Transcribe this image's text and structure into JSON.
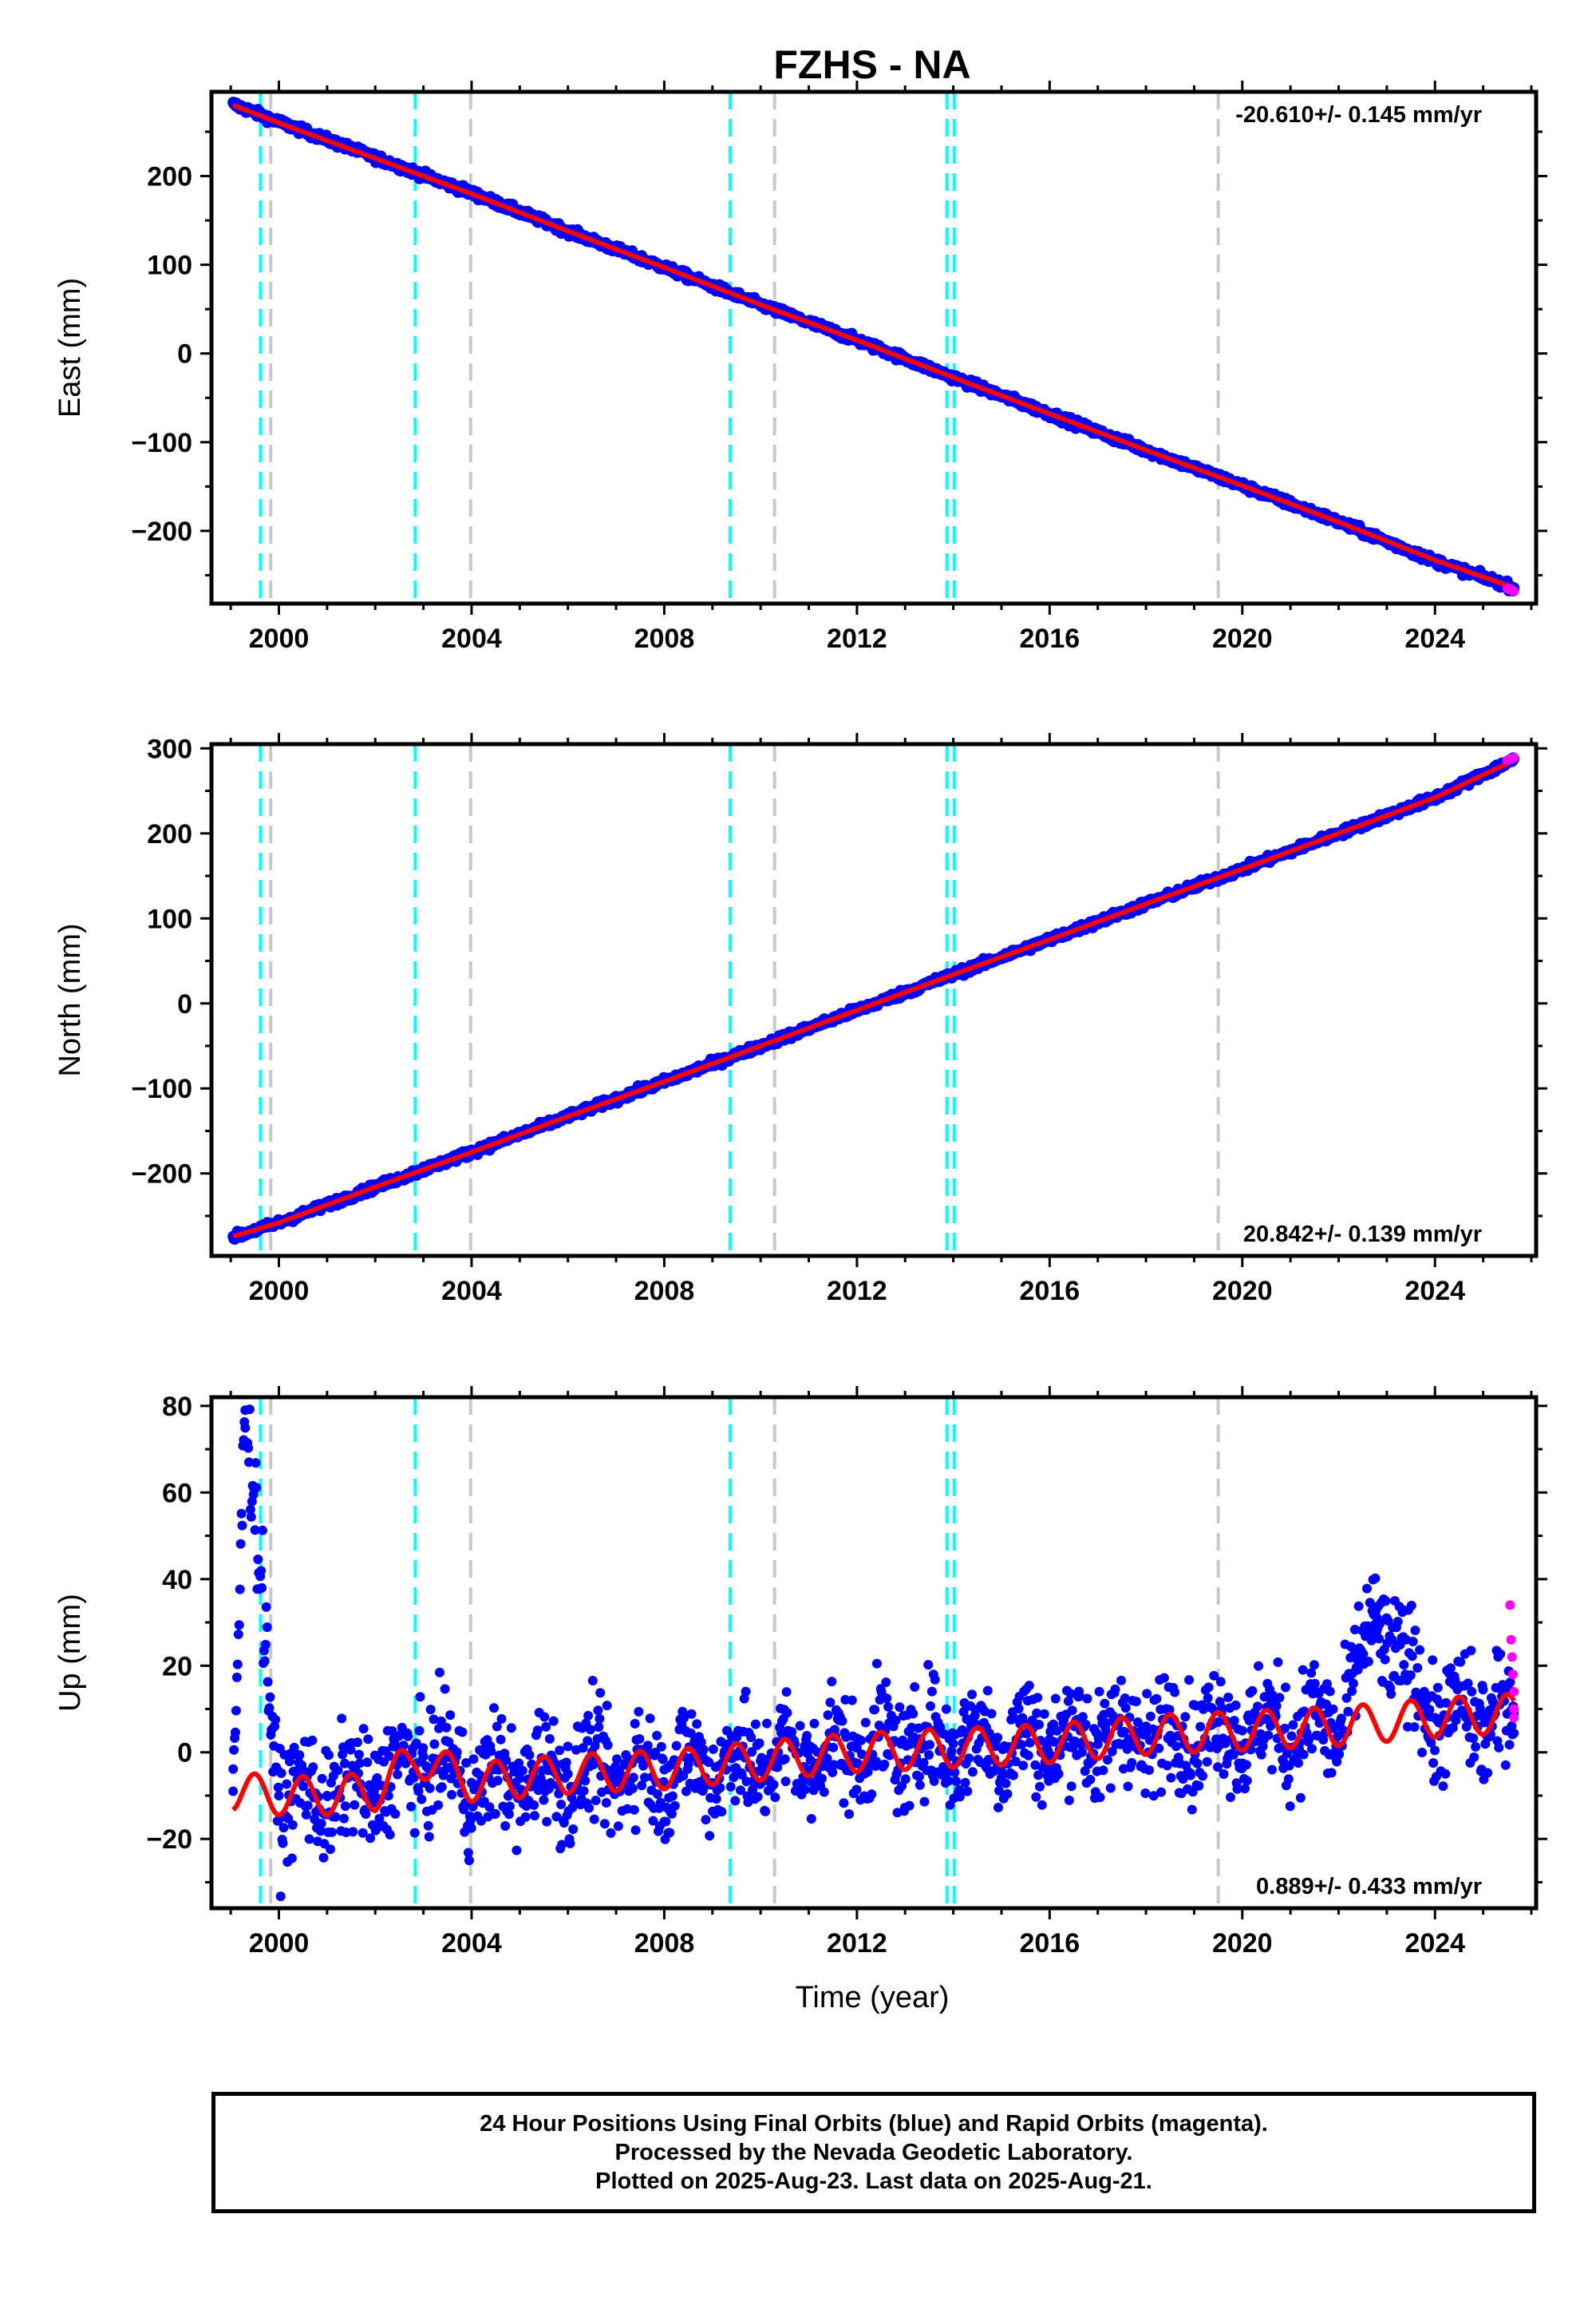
{
  "chart_data": [
    {
      "type": "scatter",
      "panel": "east",
      "title": "FZHS - NA",
      "ylabel": "East (mm)",
      "xlabel": "",
      "xlim": [
        1998.6,
        2026.1
      ],
      "ylim": [
        -282,
        295
      ],
      "xticks": [
        2000,
        2004,
        2008,
        2012,
        2016,
        2020,
        2024
      ],
      "yticks": [
        -200,
        -100,
        0,
        100,
        200
      ],
      "rate_label": "-20.610+/- 0.145 mm/yr",
      "rate_position": "top-right",
      "t_start": 1999.05,
      "t_end": 2025.64,
      "series": [
        {
          "color": "#0000ff",
          "marker": "dot",
          "x": [
            1999.05,
            2000.0,
            2002.0,
            2004.0,
            2006.0,
            2008.0,
            2010.0,
            2012.0,
            2014.0,
            2016.0,
            2018.0,
            2020.0,
            2022.0,
            2024.0,
            2025.64
          ],
          "y": [
            281,
            261,
            221,
            181,
            138,
            97,
            55,
            15,
            -27,
            -68,
            -109,
            -149,
            -190,
            -234,
            -264
          ]
        },
        {
          "color": "#ff0000",
          "type": "line",
          "x": [
            1999.05,
            2000.0,
            2002.0,
            2004.0,
            2006.0,
            2008.0,
            2010.0,
            2012.0,
            2014.0,
            2016.0,
            2018.0,
            2020.0,
            2022.0,
            2024.0,
            2025.64
          ],
          "y": [
            280,
            260,
            220,
            180,
            138,
            97,
            55,
            15,
            -27,
            -68,
            -109,
            -149,
            -190,
            -233,
            -264
          ]
        },
        {
          "color": "#ff00ff",
          "marker": "dot",
          "x": [
            2025.5,
            2025.55,
            2025.6,
            2025.64
          ],
          "y": [
            -265,
            -266,
            -267,
            -268
          ]
        }
      ],
      "breaks_equipment": [
        1999.62,
        2002.83,
        2009.37,
        2013.87,
        2014.02
      ],
      "breaks_other": [
        1999.83,
        2003.98,
        2010.29,
        2019.5
      ]
    },
    {
      "type": "scatter",
      "panel": "north",
      "title": "",
      "ylabel": "North (mm)",
      "xlabel": "",
      "xlim": [
        1998.6,
        2026.1
      ],
      "ylim": [
        -297,
        305
      ],
      "xticks": [
        2000,
        2004,
        2008,
        2012,
        2016,
        2020,
        2024
      ],
      "yticks": [
        -200,
        -100,
        0,
        100,
        200,
        300
      ],
      "rate_label": "20.842+/- 0.139 mm/yr",
      "rate_position": "bottom-right",
      "t_start": 1999.05,
      "t_end": 2025.64,
      "series": [
        {
          "color": "#0000ff",
          "marker": "dot",
          "x": [
            1999.05,
            2000.0,
            2002.0,
            2004.0,
            2006.0,
            2008.0,
            2010.0,
            2012.0,
            2014.0,
            2016.0,
            2018.0,
            2020.0,
            2022.0,
            2024.0,
            2025.64
          ],
          "y": [
            -275,
            -258,
            -216,
            -175,
            -133,
            -92,
            -50,
            -8,
            34,
            75,
            117,
            158,
            200,
            242,
            287
          ]
        },
        {
          "color": "#ff0000",
          "type": "line",
          "x": [
            1999.05,
            2000.0,
            2002.0,
            2004.0,
            2006.0,
            2008.0,
            2010.0,
            2012.0,
            2014.0,
            2016.0,
            2018.0,
            2020.0,
            2022.0,
            2024.0,
            2025.64
          ],
          "y": [
            -274,
            -258,
            -216,
            -175,
            -133,
            -92,
            -50,
            -8,
            34,
            75,
            117,
            158,
            200,
            242,
            286
          ]
        },
        {
          "color": "#ff00ff",
          "marker": "dot",
          "x": [
            2025.5,
            2025.55,
            2025.6,
            2025.64
          ],
          "y": [
            286,
            287,
            288,
            289
          ]
        }
      ],
      "breaks_equipment": [
        1999.62,
        2002.83,
        2009.37,
        2013.87,
        2014.02
      ],
      "breaks_other": [
        1999.83,
        2003.98,
        2010.29,
        2019.5
      ]
    },
    {
      "type": "scatter",
      "panel": "up",
      "title": "",
      "ylabel": "Up (mm)",
      "xlabel": "Time (year)",
      "xlim": [
        1998.6,
        2026.1
      ],
      "ylim": [
        -36,
        82
      ],
      "xticks": [
        2000,
        2004,
        2008,
        2012,
        2016,
        2020,
        2024
      ],
      "yticks": [
        -20,
        0,
        20,
        40,
        60,
        80
      ],
      "rate_label": "0.889+/- 0.433 mm/yr",
      "rate_position": "bottom-right",
      "t_start": 1999.05,
      "t_end": 2025.64,
      "seasonal_amplitude_mm": 4.5,
      "series": [
        {
          "color": "#0000ff",
          "marker": "dot",
          "x": [
            1999.05,
            1999.3,
            2000.0,
            2001.0,
            2002.0,
            2003.0,
            2004.0,
            2005.0,
            2006.0,
            2008.0,
            2010.0,
            2012.0,
            2014.0,
            2016.0,
            2018.0,
            2020.0,
            2022.0,
            2022.8,
            2024.0,
            2025.64
          ],
          "y": [
            -9,
            79,
            -10,
            -10,
            -8,
            -1,
            -7,
            -6,
            -5,
            -4,
            -2,
            1,
            2,
            3,
            4,
            5,
            6,
            31,
            8,
            9
          ]
        },
        {
          "color": "#ff0000",
          "type": "line",
          "x": [
            1999.05,
            2000.0,
            2001.0,
            2002.0,
            2002.85,
            2004.0,
            2006.0,
            2008.0,
            2010.0,
            2012.0,
            2014.0,
            2016.0,
            2018.0,
            2020.0,
            2022.0,
            2024.0,
            2025.64
          ],
          "y": [
            -9,
            -10,
            -10,
            -9,
            -1,
            -7,
            -5,
            -4,
            -2,
            0,
            1,
            2,
            4,
            5,
            6,
            8,
            9
          ]
        },
        {
          "color": "#ff00ff",
          "marker": "dot",
          "x": [
            2025.56,
            2025.58,
            2025.6,
            2025.62,
            2025.64,
            2025.64,
            2025.64
          ],
          "y": [
            34,
            26,
            22,
            18,
            14,
            10,
            8
          ]
        }
      ],
      "breaks_equipment": [
        1999.62,
        2002.83,
        2009.37,
        2013.87,
        2014.02
      ],
      "breaks_other": [
        1999.83,
        2003.98,
        2010.29,
        2019.5
      ]
    }
  ],
  "colors": {
    "final_orbits": "#0000ff",
    "rapid_orbits": "#ff00ff",
    "model": "#ff0000",
    "equipment_break": "#00ffff",
    "other_break": "#c8c8c8"
  },
  "footer": {
    "line1": "24 Hour Positions Using Final Orbits (blue) and Rapid Orbits (magenta).",
    "line2": "Processed by the Nevada Geodetic Laboratory.",
    "line3": "Plotted on 2025-Aug-23. Last data on 2025-Aug-21."
  }
}
